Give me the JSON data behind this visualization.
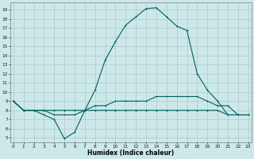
{
  "xlabel": "Humidex (Indice chaleur)",
  "bg_color": "#cce8e8",
  "grid_color": "#aacccc",
  "line_color": "#006060",
  "x_ticks": [
    0,
    1,
    2,
    3,
    4,
    5,
    6,
    7,
    8,
    9,
    10,
    11,
    12,
    13,
    14,
    15,
    16,
    17,
    18,
    19,
    20,
    21,
    22,
    23
  ],
  "y_ticks": [
    5,
    6,
    7,
    8,
    9,
    10,
    11,
    12,
    13,
    14,
    15,
    16,
    17,
    18,
    19
  ],
  "xlim": [
    -0.3,
    23.3
  ],
  "ylim": [
    4.5,
    19.8
  ],
  "line1_x": [
    0,
    1,
    2,
    3,
    4,
    5,
    6,
    7,
    8,
    9,
    10,
    11,
    12,
    13,
    14,
    15,
    16,
    17,
    18,
    19,
    20,
    21,
    22,
    23
  ],
  "line1_y": [
    9.0,
    8.0,
    8.0,
    8.0,
    8.0,
    8.0,
    8.0,
    8.0,
    8.5,
    8.5,
    9.0,
    9.0,
    9.0,
    9.0,
    9.5,
    9.5,
    9.5,
    9.5,
    9.5,
    9.0,
    8.5,
    8.5,
    7.5,
    7.5
  ],
  "line2_x": [
    0,
    1,
    2,
    3,
    4,
    5,
    6,
    7,
    8,
    9,
    10,
    11,
    12,
    13,
    14,
    15,
    16,
    17,
    18,
    19,
    20,
    21,
    22,
    23
  ],
  "line2_y": [
    9.0,
    8.0,
    8.0,
    7.5,
    7.0,
    4.9,
    5.6,
    8.0,
    10.2,
    13.5,
    15.5,
    17.3,
    18.2,
    19.1,
    19.2,
    18.2,
    17.2,
    16.7,
    12.0,
    10.2,
    9.0,
    7.5,
    7.5,
    7.5
  ],
  "line3_x": [
    0,
    1,
    2,
    3,
    4,
    5,
    6,
    7,
    8,
    9,
    10,
    11,
    12,
    13,
    14,
    15,
    16,
    17,
    18,
    19,
    20,
    21,
    22,
    23
  ],
  "line3_y": [
    9.0,
    8.0,
    8.0,
    8.0,
    7.5,
    7.5,
    7.5,
    8.0,
    8.0,
    8.0,
    8.0,
    8.0,
    8.0,
    8.0,
    8.0,
    8.0,
    8.0,
    8.0,
    8.0,
    8.0,
    8.0,
    7.5,
    7.5,
    7.5
  ]
}
